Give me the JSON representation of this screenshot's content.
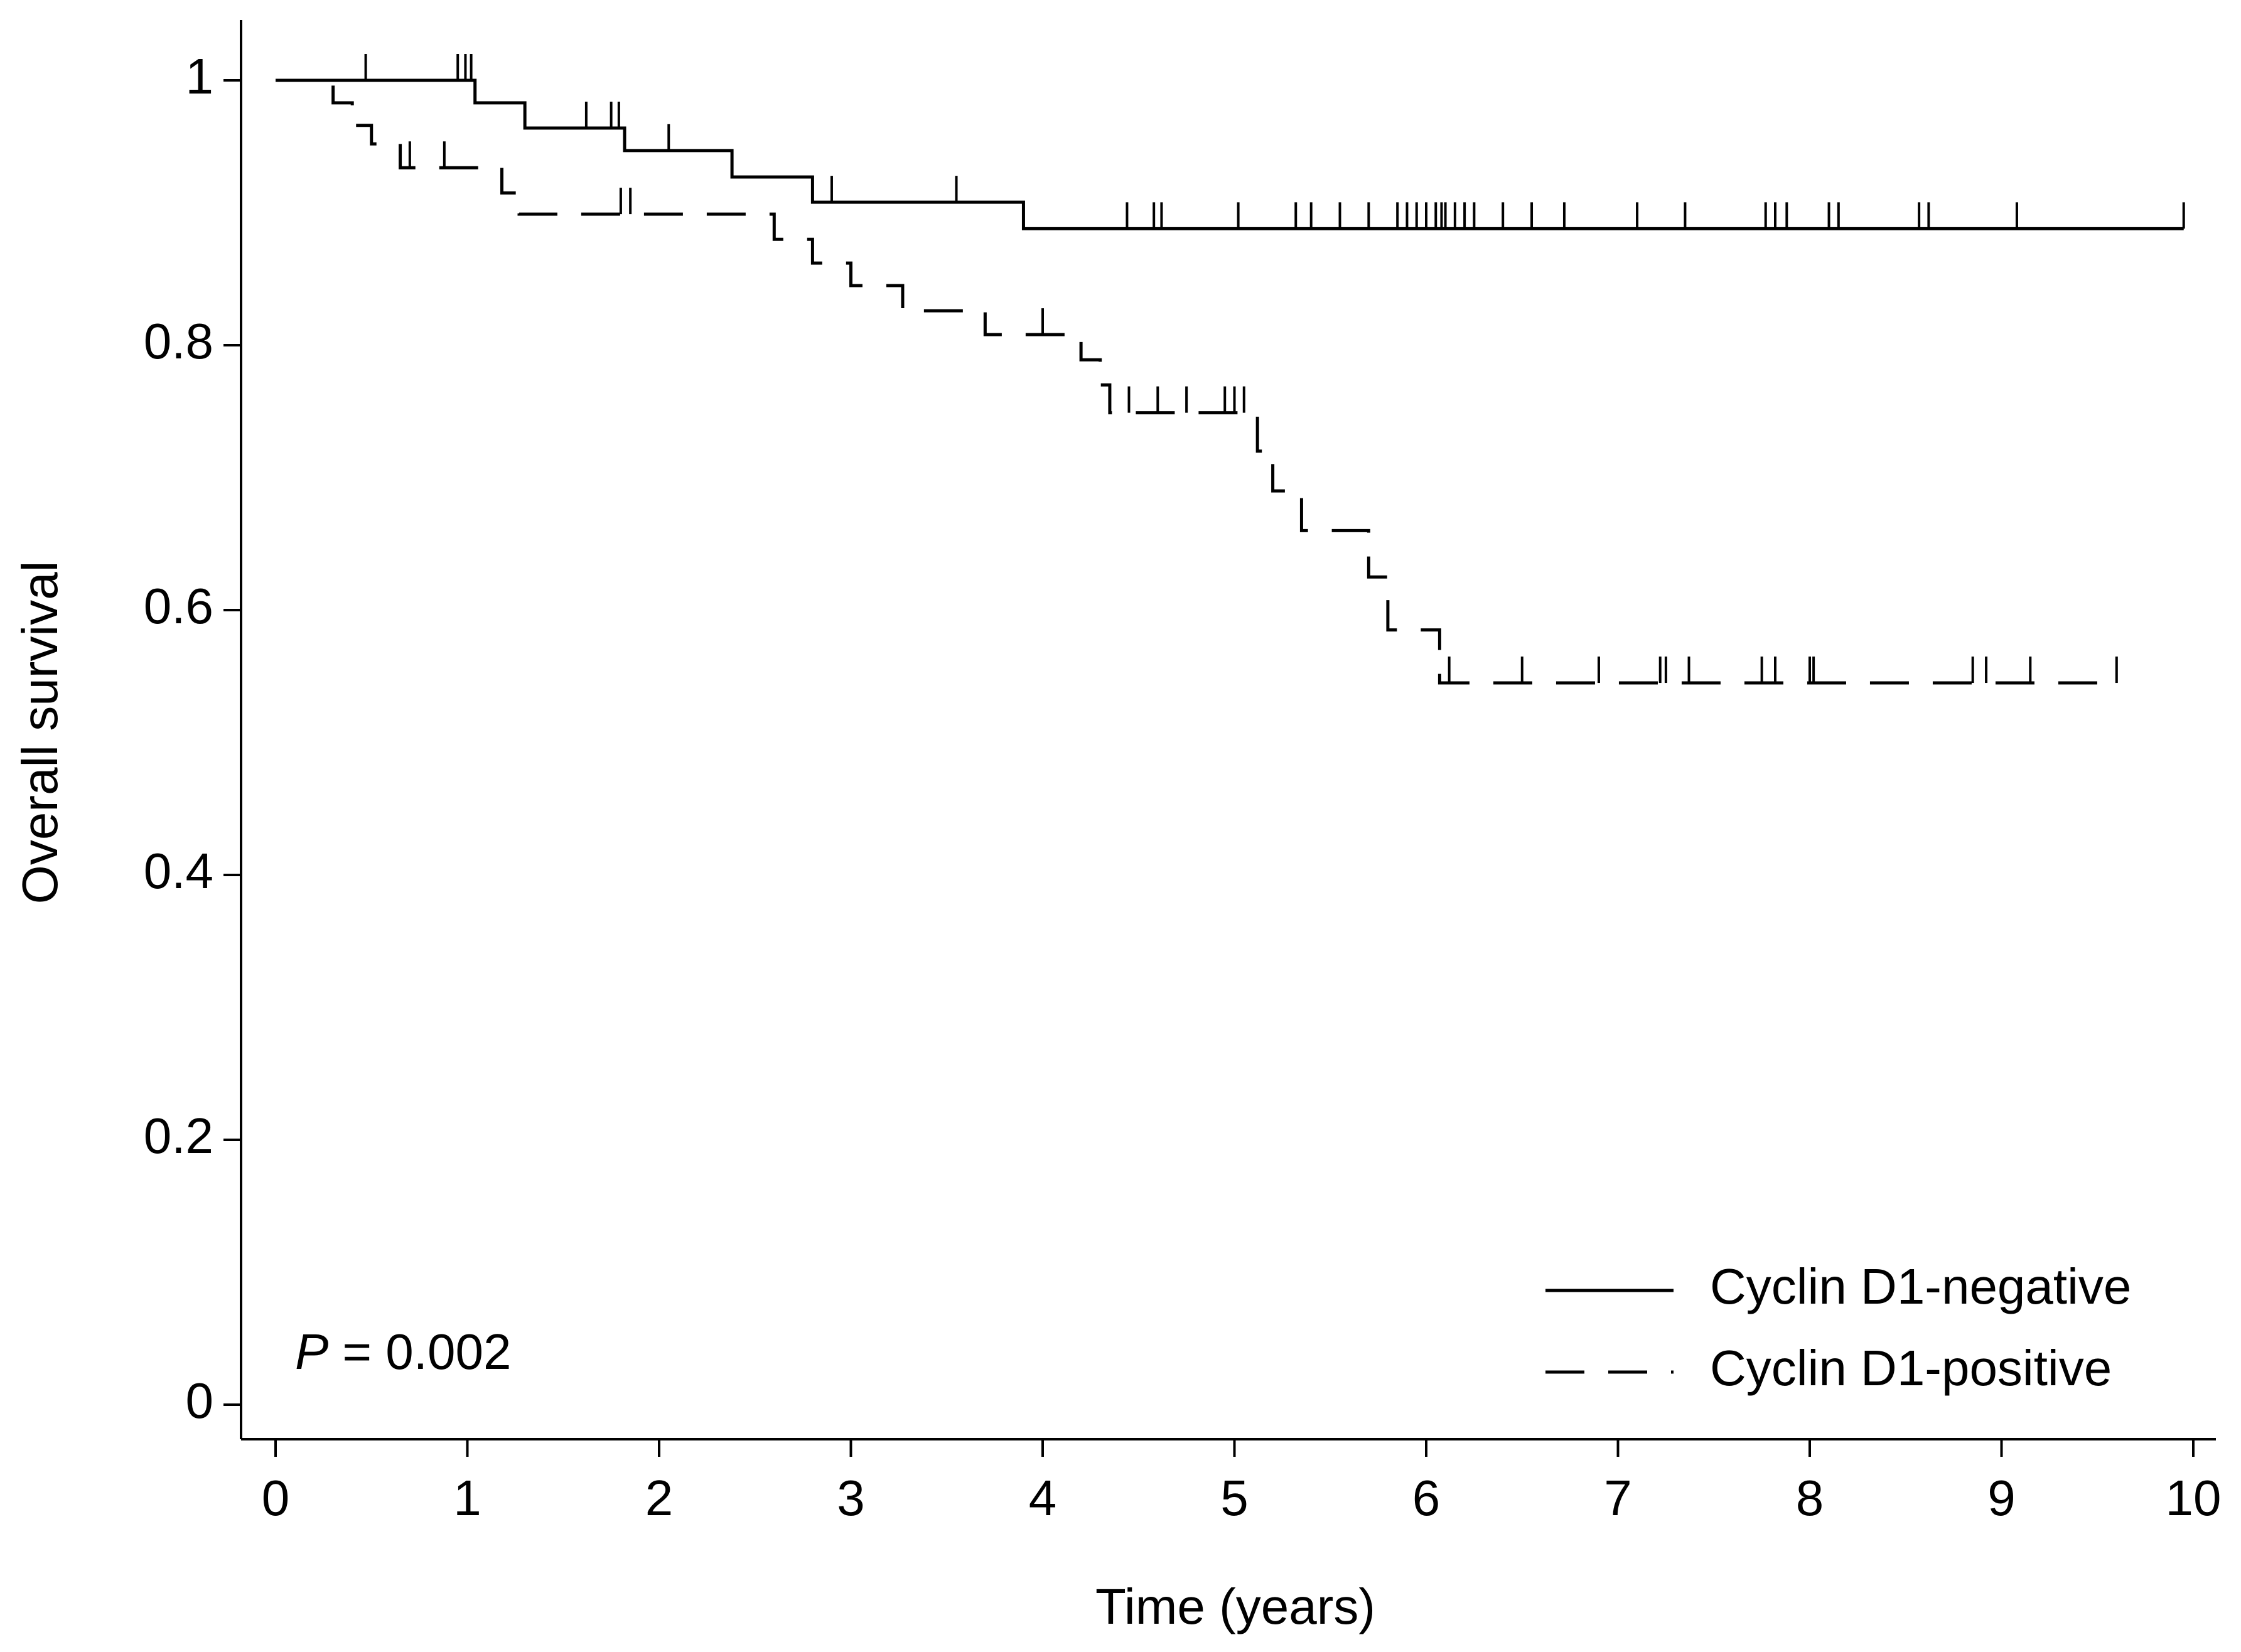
{
  "chart_data": {
    "type": "km",
    "xlabel": "Time (years)",
    "ylabel": "Overall survival",
    "xlim": [
      0,
      10
    ],
    "xticks": [
      0,
      1,
      2,
      3,
      4,
      5,
      6,
      7,
      8,
      9,
      10
    ],
    "ylim": [
      0,
      1
    ],
    "yticks": [
      0,
      0.2,
      0.4,
      0.6,
      0.8,
      1
    ],
    "annotation": {
      "symbol": "P",
      "text": "= 0.002"
    },
    "legend": "bottom-right",
    "series": [
      {
        "name": "Cyclin D1-negative",
        "color": "#000000",
        "dash": false,
        "x": [
          0,
          1.04,
          1.3,
          1.82,
          2.38,
          2.8,
          3.9,
          9.95
        ],
        "values": [
          1,
          0.983,
          0.964,
          0.947,
          0.927,
          0.908,
          0.888,
          0.888
        ],
        "censor_x": [
          0.47,
          0.95,
          0.99,
          1.02,
          1.62,
          1.75,
          1.79,
          2.05,
          2.9,
          3.55,
          4.44,
          4.58,
          4.62,
          5.02,
          5.32,
          5.4,
          5.55,
          5.7,
          5.85,
          5.9,
          5.95,
          6.0,
          6.05,
          6.08,
          6.1,
          6.15,
          6.2,
          6.25,
          6.4,
          6.55,
          6.72,
          7.1,
          7.35,
          7.77,
          7.82,
          7.88,
          8.1,
          8.15,
          8.57,
          8.62,
          9.08,
          9.95
        ],
        "censor_y": [
          1,
          1,
          1,
          1,
          0.964,
          0.964,
          0.964,
          0.947,
          0.908,
          0.908,
          0.888,
          0.888,
          0.888,
          0.888,
          0.888,
          0.888,
          0.888,
          0.888,
          0.888,
          0.888,
          0.888,
          0.888,
          0.888,
          0.888,
          0.888,
          0.888,
          0.888,
          0.888,
          0.888,
          0.888,
          0.888,
          0.888,
          0.888,
          0.888,
          0.888,
          0.888,
          0.888,
          0.888,
          0.888,
          0.888,
          0.888,
          0.888
        ]
      },
      {
        "name": "Cyclin D1-positive",
        "color": "#000000",
        "dash": true,
        "x": [
          0,
          0.3,
          0.4,
          0.5,
          0.65,
          1.18,
          1.27,
          2.6,
          2.8,
          3.0,
          3.27,
          3.7,
          4.2,
          4.3,
          4.35,
          5.12,
          5.2,
          5.35,
          5.7,
          5.8,
          6.07,
          9.6
        ],
        "values": [
          1,
          0.983,
          0.966,
          0.952,
          0.934,
          0.915,
          0.899,
          0.88,
          0.862,
          0.845,
          0.826,
          0.808,
          0.789,
          0.77,
          0.749,
          0.72,
          0.69,
          0.66,
          0.625,
          0.585,
          0.545,
          0.545
        ],
        "censor_x": [
          0.7,
          0.88,
          1.8,
          1.85,
          4.0,
          4.45,
          4.6,
          4.75,
          4.95,
          5.0,
          5.05,
          6.12,
          6.5,
          6.9,
          7.22,
          7.25,
          7.37,
          7.75,
          7.82,
          8.0,
          8.02,
          8.85,
          8.92,
          9.15,
          9.6
        ],
        "censor_y": [
          0.934,
          0.934,
          0.899,
          0.899,
          0.808,
          0.749,
          0.749,
          0.749,
          0.749,
          0.749,
          0.749,
          0.545,
          0.545,
          0.545,
          0.545,
          0.545,
          0.545,
          0.545,
          0.545,
          0.545,
          0.545,
          0.545,
          0.545,
          0.545,
          0.545
        ]
      }
    ]
  }
}
